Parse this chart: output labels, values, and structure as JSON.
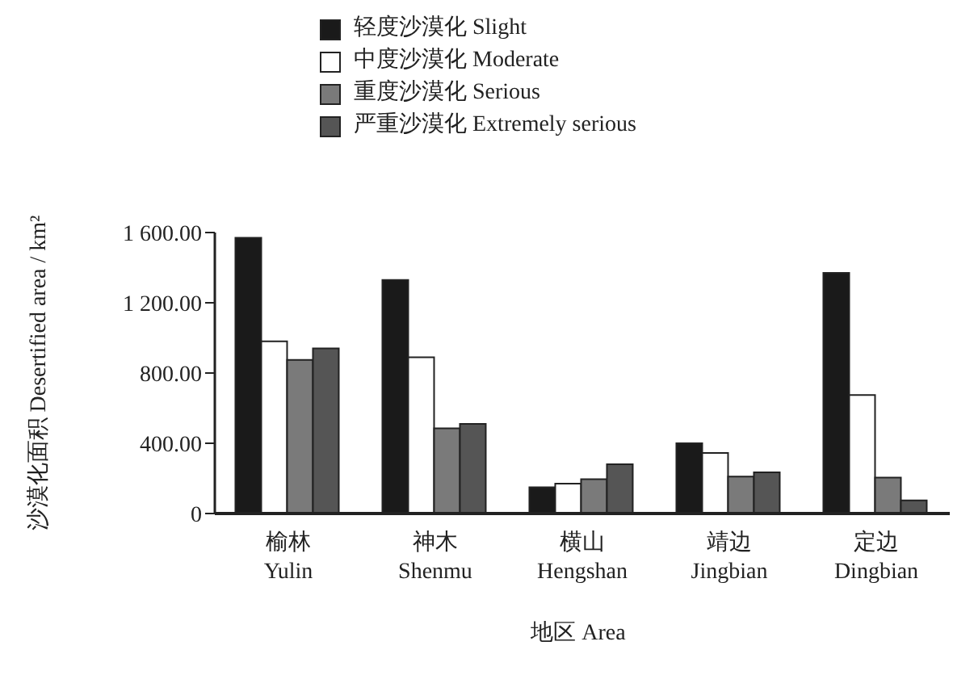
{
  "chart_data": {
    "type": "bar",
    "xlabel": "地区 Area",
    "ylabel": "沙漠化面积 Desertified area / km²",
    "categories": [
      "榆林 Yulin",
      "神木 Shenmu",
      "横山 Hengshan",
      "靖边 Jingbian",
      "定边 Dingbian"
    ],
    "series": [
      {
        "name": "轻度沙漠化 Slight",
        "color": "#1a1a1a",
        "values": [
          1570,
          1330,
          150,
          400,
          1370
        ]
      },
      {
        "name": "中度沙漠化 Moderate",
        "color": "#ffffff",
        "values": [
          980,
          890,
          170,
          345,
          675
        ]
      },
      {
        "name": "重度沙漠化 Serious",
        "color": "#7a7a7a",
        "values": [
          875,
          485,
          195,
          210,
          205
        ]
      },
      {
        "name": "严重沙漠化 Extremely serious",
        "color": "#555555",
        "values": [
          940,
          510,
          280,
          235,
          75
        ]
      }
    ],
    "ylim": [
      0,
      1600
    ],
    "yticks": [
      {
        "value": 0,
        "label": "0"
      },
      {
        "value": 400,
        "label": "400.00"
      },
      {
        "value": 800,
        "label": "800.00"
      },
      {
        "value": 1200,
        "label": "1 200.00"
      },
      {
        "value": 1600,
        "label": "1 600.00"
      }
    ],
    "grid": false,
    "legend": "top"
  }
}
